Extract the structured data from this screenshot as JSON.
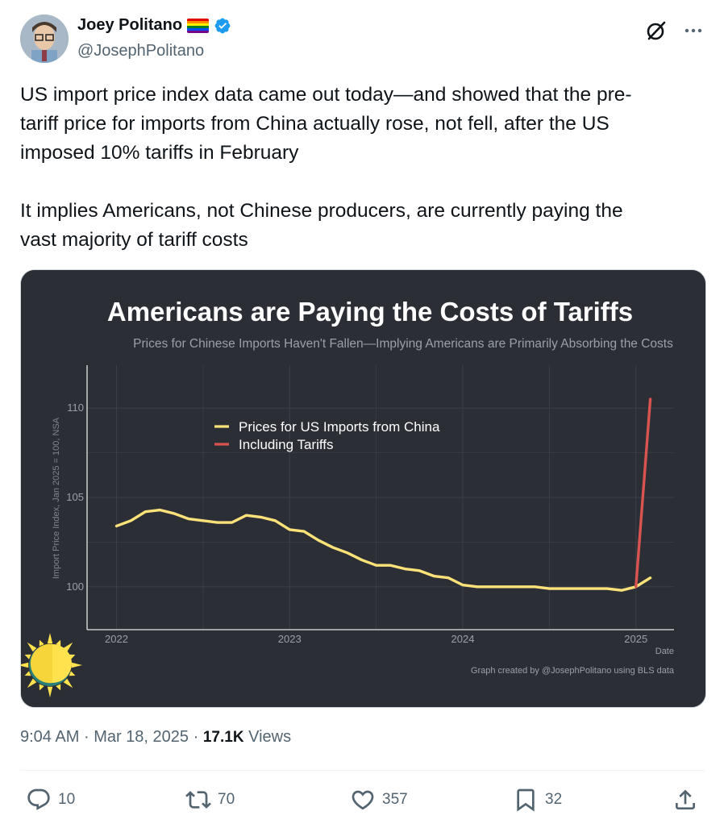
{
  "author": {
    "name": "Joey Politano",
    "handle": "@JosephPolitano",
    "flag_colors": [
      "#e40303",
      "#ff8c00",
      "#ffed00",
      "#008026",
      "#004dff",
      "#750787"
    ],
    "verified_color": "#1d9bf0"
  },
  "tweet": {
    "text": "US import price index data came out today—and showed that the pre-\ntariff price for imports from China actually rose, not fell, after the US\nimposed 10% tariffs in February\n\nIt implies Americans, not Chinese producers, are currently paying the\nvast majority of tariff costs"
  },
  "chart_data": {
    "type": "line",
    "title": "Americans are Paying the Costs of Tariffs",
    "subtitle": "Prices for Chinese Imports Haven't Fallen—Implying Americans are Primarily Absorbing the Costs",
    "xlabel": "Date",
    "ylabel": "Import Price Index, Jan 2025 = 100, NSA",
    "credit": "Graph created by @JosephPolitano using BLS data",
    "xlim": [
      2021.83,
      2025.22
    ],
    "ylim": [
      97.6,
      112.4
    ],
    "x_ticks": [
      2022,
      2023,
      2024,
      2025
    ],
    "y_ticks": [
      100,
      105,
      110
    ],
    "grid": true,
    "legend_position": "top-left inside",
    "colors": {
      "background": "#2b2e35",
      "china": "#fde27a",
      "tariffs": "#d9534f"
    },
    "series": [
      {
        "name": "Prices for US Imports from China",
        "color": "#fde27a",
        "x": [
          2022.0,
          2022.083,
          2022.167,
          2022.25,
          2022.333,
          2022.417,
          2022.5,
          2022.583,
          2022.667,
          2022.75,
          2022.833,
          2022.917,
          2023.0,
          2023.083,
          2023.167,
          2023.25,
          2023.333,
          2023.417,
          2023.5,
          2023.583,
          2023.667,
          2023.75,
          2023.833,
          2023.917,
          2024.0,
          2024.083,
          2024.167,
          2024.25,
          2024.333,
          2024.417,
          2024.5,
          2024.583,
          2024.667,
          2024.75,
          2024.833,
          2024.917,
          2025.0,
          2025.083
        ],
        "y": [
          103.4,
          103.7,
          104.2,
          104.3,
          104.1,
          103.8,
          103.7,
          103.6,
          103.6,
          104.0,
          103.9,
          103.7,
          103.2,
          103.1,
          102.6,
          102.2,
          101.9,
          101.5,
          101.2,
          101.2,
          101.0,
          100.9,
          100.6,
          100.5,
          100.1,
          100.0,
          100.0,
          100.0,
          100.0,
          100.0,
          99.9,
          99.9,
          99.9,
          99.9,
          99.9,
          99.8,
          100.0,
          100.5
        ]
      },
      {
        "name": "Including Tariffs",
        "color": "#d9534f",
        "x": [
          2025.0,
          2025.083
        ],
        "y": [
          100.0,
          110.5
        ]
      }
    ]
  },
  "timestamp": {
    "time": "9:04 AM",
    "date": "Mar 18, 2025",
    "views_count": "17.1K",
    "views_label": "Views",
    "separator": "·"
  },
  "actions": {
    "replies": "10",
    "reposts": "70",
    "likes": "357",
    "bookmarks": "32"
  }
}
